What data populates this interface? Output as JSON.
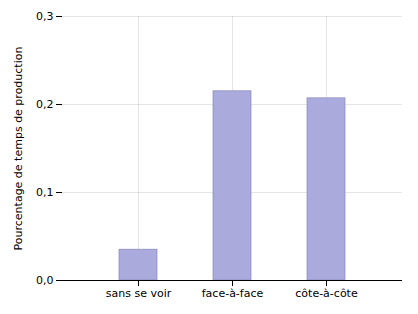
{
  "chart_data": {
    "type": "bar",
    "categories": [
      "sans se voir",
      "face-à-face",
      "côte-à-côte"
    ],
    "values": [
      0.035,
      0.215,
      0.207
    ],
    "color": "#aaaadd",
    "ylabel": "Pourcentage de temps de production",
    "ylim": [
      0,
      0.3
    ],
    "yticks": [
      {
        "value": 0.0,
        "label": "0,0"
      },
      {
        "value": 0.1,
        "label": "0,1"
      },
      {
        "value": 0.2,
        "label": "0,2"
      },
      {
        "value": 0.3,
        "label": "0,3"
      }
    ],
    "grid": true
  }
}
